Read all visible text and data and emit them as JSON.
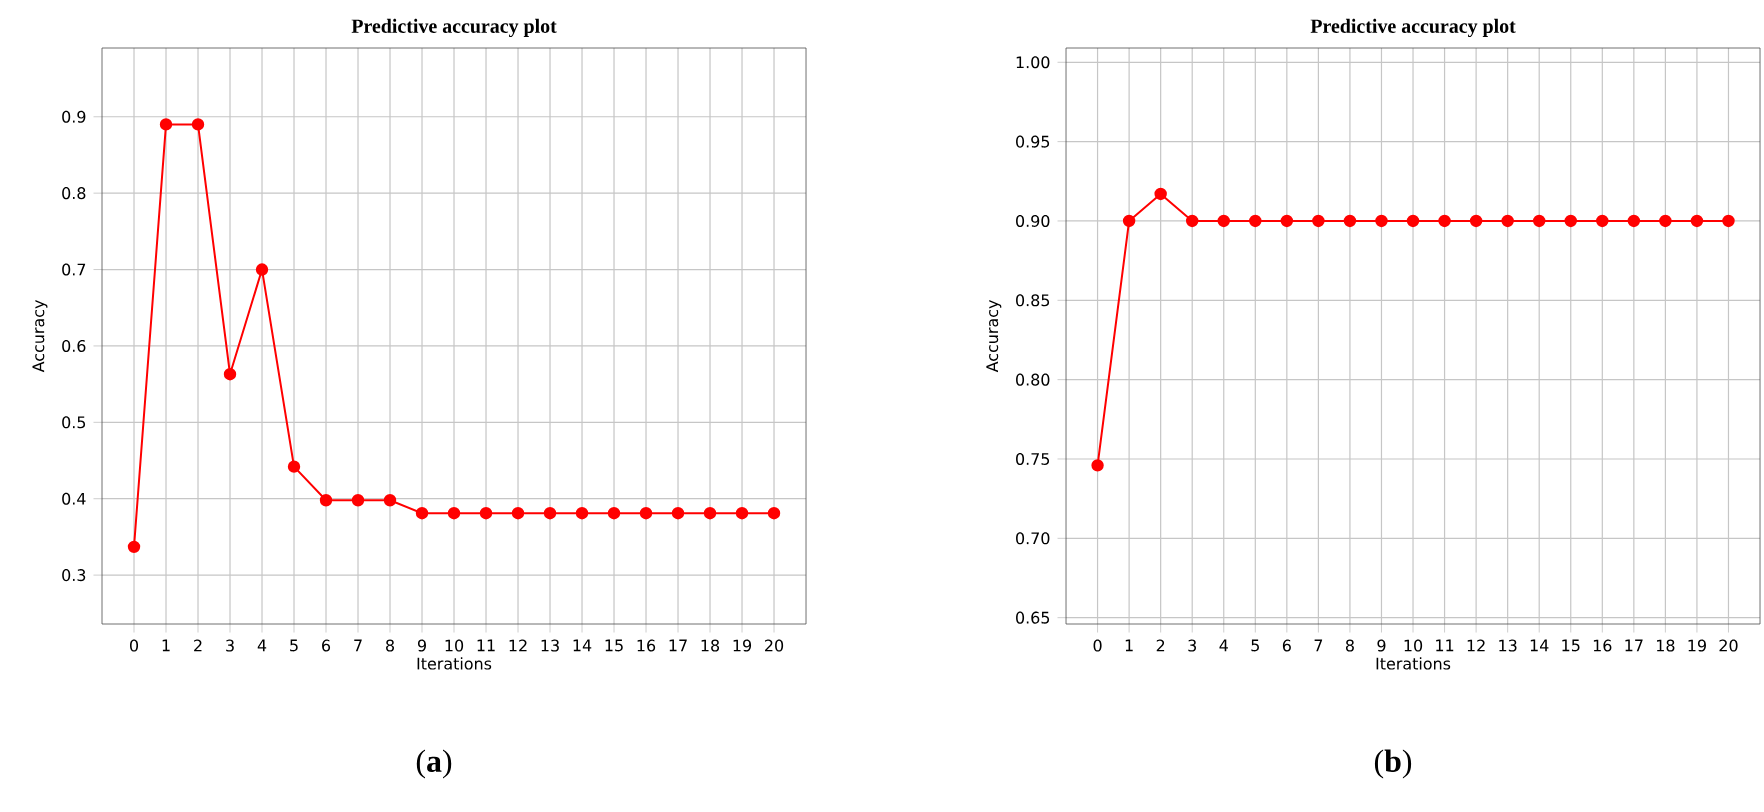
{
  "chart_data": [
    {
      "type": "line",
      "title": "Predictive accuracy plot",
      "xlabel": "Iterations",
      "ylabel": "Accuracy",
      "x": [
        0,
        1,
        2,
        3,
        4,
        5,
        6,
        7,
        8,
        9,
        10,
        11,
        12,
        13,
        14,
        15,
        16,
        17,
        18,
        19,
        20
      ],
      "series": [
        {
          "color": "#ff0000",
          "values": [
            0.337,
            0.89,
            0.89,
            0.563,
            0.7,
            0.442,
            0.398,
            0.398,
            0.398,
            0.381,
            0.381,
            0.381,
            0.381,
            0.381,
            0.381,
            0.381,
            0.381,
            0.381,
            0.381,
            0.381,
            0.381
          ]
        }
      ],
      "xlim": [
        -1,
        21
      ],
      "ylim": [
        0.236,
        0.99
      ],
      "xticks": [
        0,
        1,
        2,
        3,
        4,
        5,
        6,
        7,
        8,
        9,
        10,
        11,
        12,
        13,
        14,
        15,
        16,
        17,
        18,
        19,
        20
      ],
      "yticks": [
        0.3,
        0.4,
        0.5,
        0.6,
        0.7,
        0.8,
        0.9
      ],
      "grid": true,
      "marker": "circle",
      "line_style": "solid",
      "annotations": [
        "(**a**)"
      ]
    },
    {
      "type": "line",
      "title": "Predictive accuracy plot",
      "xlabel": "Iterations",
      "ylabel": "Accuracy",
      "x": [
        0,
        1,
        2,
        3,
        4,
        5,
        6,
        7,
        8,
        9,
        10,
        11,
        12,
        13,
        14,
        15,
        16,
        17,
        18,
        19,
        20
      ],
      "series": [
        {
          "color": "#ff0000",
          "values": [
            0.746,
            0.9,
            0.917,
            0.9,
            0.9,
            0.9,
            0.9,
            0.9,
            0.9,
            0.9,
            0.9,
            0.9,
            0.9,
            0.9,
            0.9,
            0.9,
            0.9,
            0.9,
            0.9,
            0.9,
            0.9
          ]
        }
      ],
      "xlim": [
        -1,
        21
      ],
      "ylim": [
        0.646,
        1.009
      ],
      "xticks": [
        0,
        1,
        2,
        3,
        4,
        5,
        6,
        7,
        8,
        9,
        10,
        11,
        12,
        13,
        14,
        15,
        16,
        17,
        18,
        19,
        20
      ],
      "yticks": [
        {
          "value": 0.65,
          "label": "0.65"
        },
        {
          "value": 0.7,
          "label": "0.70"
        },
        {
          "value": 0.75,
          "label": "0.75"
        },
        {
          "value": 0.8,
          "label": "0.80"
        },
        {
          "value": 0.85,
          "label": "0.85"
        },
        {
          "value": 0.9,
          "label": "0.90"
        },
        {
          "value": 0.95,
          "label": "0.95"
        },
        {
          "value": 1.0,
          "label": "1.00"
        }
      ],
      "grid": true,
      "marker": "circle",
      "line_style": "solid",
      "annotations": [
        "(**b**)"
      ]
    }
  ]
}
